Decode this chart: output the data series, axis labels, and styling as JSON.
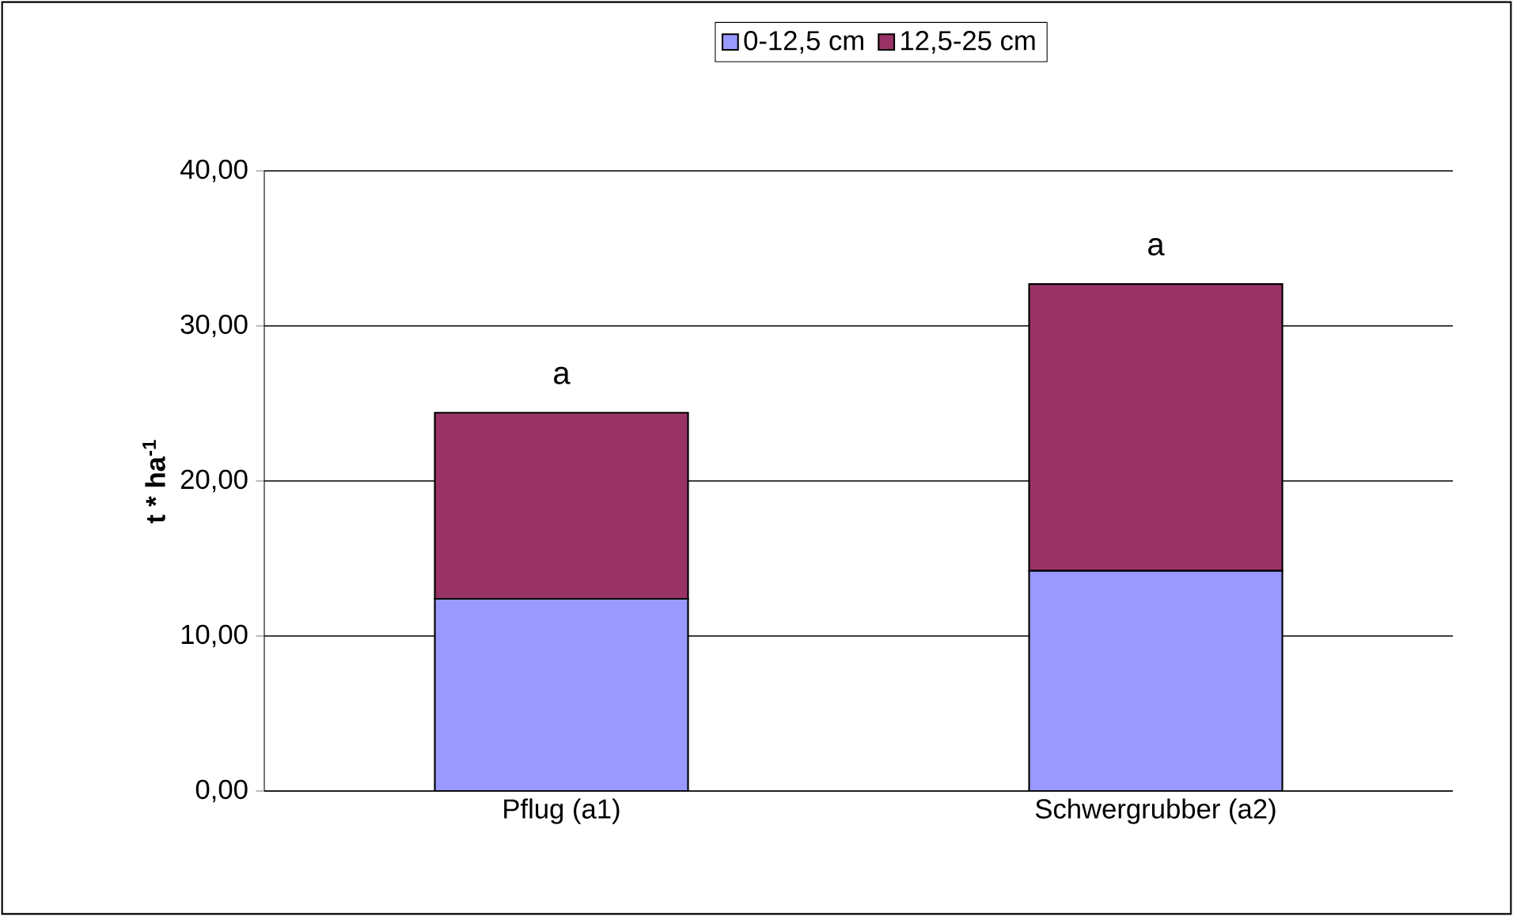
{
  "chart_data": {
    "type": "bar",
    "stacked": true,
    "ylabel": "t * ha$^{-1}$",
    "categories": [
      "Pflug (a1)",
      "Schwergrubber (a2)"
    ],
    "series": [
      {
        "name": "0-12,5 cm",
        "color": "#9999ff",
        "values": [
          12.4,
          14.2
        ]
      },
      {
        "name": "12,5-25 cm",
        "color": "#993366",
        "values": [
          12.0,
          18.5
        ]
      }
    ],
    "ylim": [
      0,
      40
    ],
    "yticks": [
      {
        "value": 0,
        "label": "0,00"
      },
      {
        "value": 10,
        "label": "10,00"
      },
      {
        "value": 20,
        "label": "20,00"
      },
      {
        "value": 30,
        "label": "30,00"
      },
      {
        "value": 40,
        "label": "40,00"
      }
    ],
    "grid": "y",
    "legend": "top",
    "annotations": [
      {
        "text": "a",
        "x": "Pflug (a1)",
        "y": 24.4
      },
      {
        "text": "a",
        "x": "Schwergrubber (a2)",
        "y": 32.7
      }
    ]
  }
}
